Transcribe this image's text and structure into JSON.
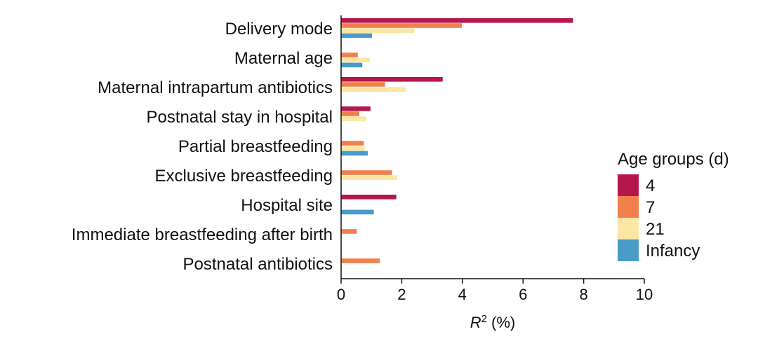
{
  "chart_data": {
    "type": "bar",
    "orientation": "horizontal",
    "categories": [
      "Delivery mode",
      "Maternal age",
      "Maternal intrapartum antibiotics",
      "Postnatal stay in hospital",
      "Partial breastfeeding",
      "Exclusive breastfeeding",
      "Hospital site",
      "Immediate breastfeeding after birth",
      "Postnatal antibiotics"
    ],
    "series": [
      {
        "name": "4",
        "color": "#B5174D",
        "values": [
          7.65,
          0,
          3.35,
          0.97,
          0,
          0,
          1.82,
          0,
          0
        ]
      },
      {
        "name": "7",
        "color": "#F0804C",
        "values": [
          3.98,
          0.55,
          1.45,
          0.6,
          0.75,
          1.68,
          0,
          0.52,
          1.28
        ]
      },
      {
        "name": "21",
        "color": "#FCE6A4",
        "values": [
          2.42,
          0.95,
          2.13,
          0.82,
          0.78,
          1.85,
          0,
          0,
          0
        ]
      },
      {
        "name": "Infancy",
        "color": "#4A9BC7",
        "values": [
          1.02,
          0.7,
          0,
          0,
          0.88,
          0,
          1.08,
          0,
          0
        ]
      }
    ],
    "xlabel_main": "R",
    "xlabel_sup": "2",
    "xlabel_unit": "(%)",
    "xlim": [
      0,
      10
    ],
    "xticks": [
      0,
      2,
      4,
      6,
      8,
      10
    ],
    "legend": {
      "title": "Age groups (d)",
      "position": "right"
    },
    "grid": false
  }
}
